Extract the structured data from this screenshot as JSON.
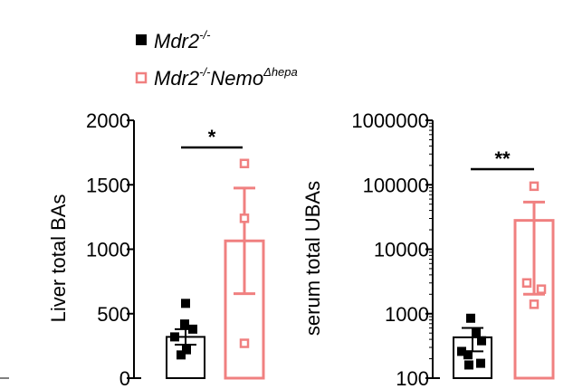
{
  "legend": [
    {
      "label": "Mdr2",
      "sup": "-/-",
      "color": "#000000"
    },
    {
      "label": "Mdr2",
      "sup": "-/-",
      "label2": "Nemo",
      "sup2": "Δhepa",
      "color": "#f08080"
    }
  ],
  "chart_data": [
    {
      "type": "bar",
      "ylabel": "Liver total BAs",
      "yscale": "linear",
      "ylim": [
        0,
        2000
      ],
      "yticks": [
        "0",
        "500",
        "1000",
        "1500",
        "2000"
      ],
      "significance": "*",
      "series": [
        {
          "mean": 320,
          "sem": 60,
          "points": [
            580,
            420,
            380,
            320,
            220,
            180
          ],
          "color": "#000000",
          "style": "filled"
        },
        {
          "mean": 1065,
          "sem": 410,
          "points": [
            1665,
            1240,
            270
          ],
          "color": "#f08080",
          "style": "open"
        }
      ]
    },
    {
      "type": "bar",
      "ylabel": "serum total UBAs",
      "yscale": "log",
      "ylim": [
        100,
        1000000
      ],
      "yticks": [
        "100",
        "1000",
        "10000",
        "100000",
        "1000000"
      ],
      "significance": "**",
      "series": [
        {
          "mean": 430,
          "sem": 170,
          "points": [
            850,
            520,
            380,
            260,
            230,
            170,
            160
          ],
          "color": "#000000",
          "style": "filled"
        },
        {
          "mean": 28000,
          "sem": 26000,
          "points": [
            95000,
            3000,
            2400,
            1400
          ],
          "color": "#f08080",
          "style": "open"
        }
      ]
    }
  ]
}
